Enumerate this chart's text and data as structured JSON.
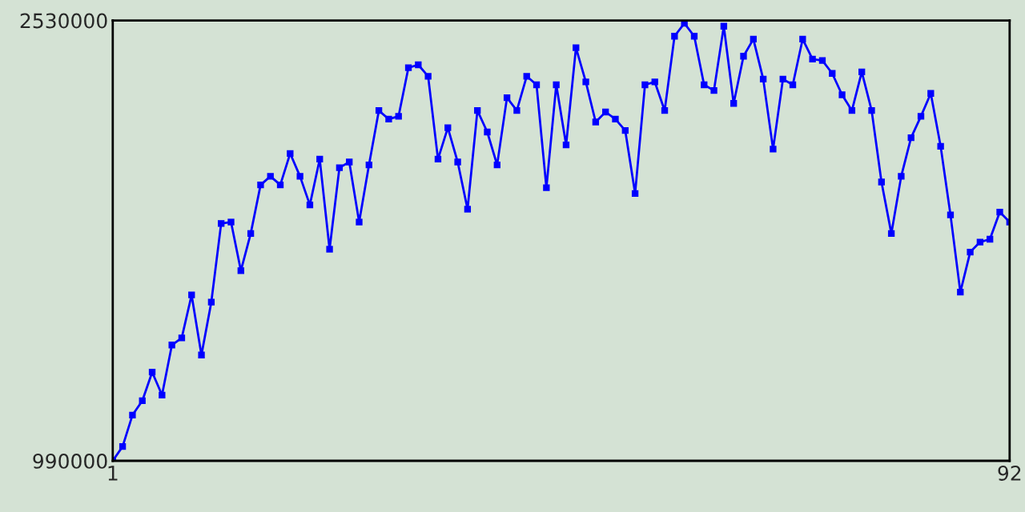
{
  "chart_data": {
    "type": "line",
    "marker": "square",
    "line_style": "solid",
    "legend": false,
    "x": [
      1,
      2,
      3,
      4,
      5,
      6,
      7,
      8,
      9,
      10,
      11,
      12,
      13,
      14,
      15,
      16,
      17,
      18,
      19,
      20,
      21,
      22,
      23,
      24,
      25,
      26,
      27,
      28,
      29,
      30,
      31,
      32,
      33,
      34,
      35,
      36,
      37,
      38,
      39,
      40,
      41,
      42,
      43,
      44,
      45,
      46,
      47,
      48,
      49,
      50,
      51,
      52,
      53,
      54,
      55,
      56,
      57,
      58,
      59,
      60,
      61,
      62,
      63,
      64,
      65,
      66,
      67,
      68,
      69,
      70,
      71,
      72,
      73,
      74,
      75,
      76,
      77,
      78,
      79,
      80,
      81,
      82,
      83,
      84,
      85,
      86,
      87,
      88,
      89,
      90,
      91,
      92
    ],
    "series": [
      {
        "color": "#0000ff",
        "values": [
          990000,
          1040000,
          1150000,
          1200000,
          1300000,
          1220000,
          1395000,
          1420000,
          1570000,
          1360000,
          1545000,
          1820000,
          1825000,
          1655000,
          1785000,
          1955000,
          1985000,
          1955000,
          2065000,
          1985000,
          1885000,
          2045000,
          1730000,
          2015000,
          2035000,
          1825000,
          2025000,
          2215000,
          2185000,
          2195000,
          2365000,
          2375000,
          2335000,
          2045000,
          2155000,
          2035000,
          1870000,
          2215000,
          2140000,
          2025000,
          2260000,
          2215000,
          2335000,
          2305000,
          1945000,
          2305000,
          2095000,
          2435000,
          2315000,
          2175000,
          2210000,
          2185000,
          2145000,
          1925000,
          2305000,
          2315000,
          2215000,
          2475000,
          2520000,
          2475000,
          2305000,
          2285000,
          2510000,
          2240000,
          2405000,
          2465000,
          2325000,
          2080000,
          2325000,
          2305000,
          2465000,
          2395000,
          2390000,
          2345000,
          2270000,
          2215000,
          2350000,
          2215000,
          1965000,
          1785000,
          1985000,
          2120000,
          2195000,
          2275000,
          2090000,
          1850000,
          1580000,
          1720000,
          1755000,
          1765000,
          1860000,
          1825000
        ]
      }
    ],
    "xlim": [
      1,
      92
    ],
    "xticks": [
      1,
      92
    ],
    "ylim": [
      990000,
      2530000
    ],
    "yticks": [
      990000,
      2530000
    ]
  }
}
